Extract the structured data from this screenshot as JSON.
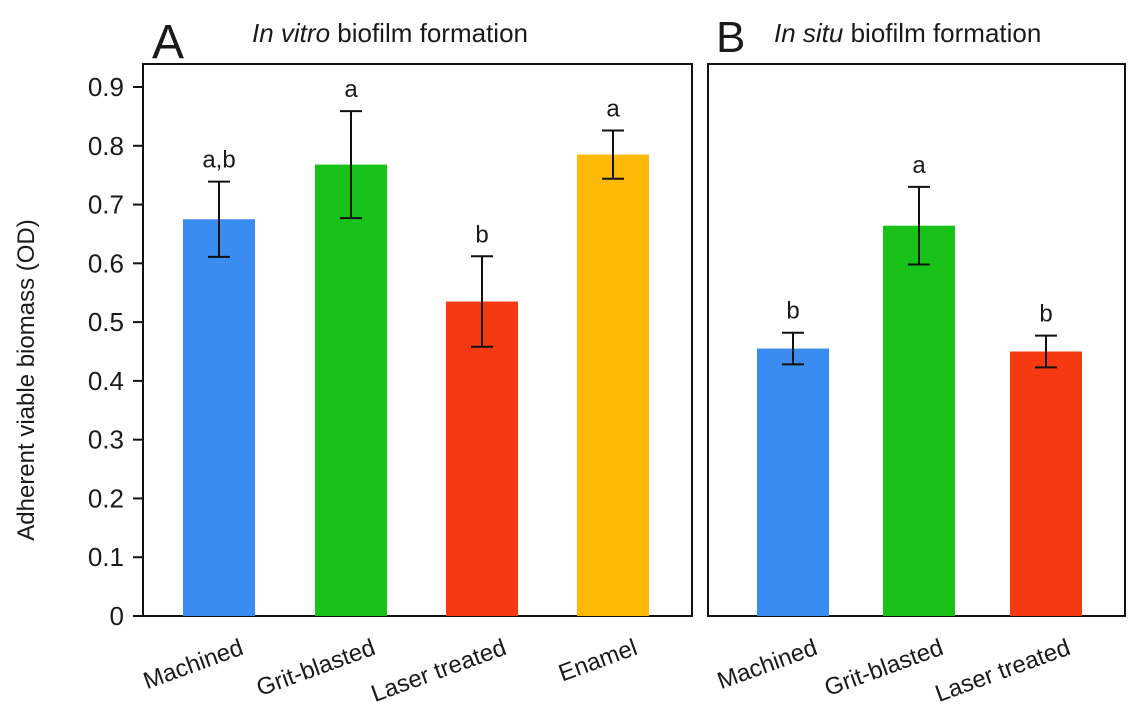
{
  "figure": {
    "ylabel": "Adherent viable biomass (OD)"
  },
  "colors": {
    "Machined": "#3b8cf0",
    "Grit-blasted": "#19c219",
    "Laser treated": "#f53a12",
    "Enamel": "#fcb907"
  },
  "chart_data": [
    {
      "type": "bar",
      "panel_letter": "A",
      "title_italic": "In vitro",
      "title_rest": " biofilm formation",
      "ylim": [
        0,
        0.9
      ],
      "yticks": [
        "0",
        "0.1",
        "0.2",
        "0.3",
        "0.4",
        "0.5",
        "0.6",
        "0.7",
        "0.8",
        "0.9"
      ],
      "categories": [
        "Machined",
        "Grit-blasted",
        "Laser treated",
        "Enamel"
      ],
      "values": [
        0.675,
        0.768,
        0.535,
        0.785
      ],
      "error": [
        0.064,
        0.091,
        0.077,
        0.041
      ],
      "letters": [
        "a,b",
        "a",
        "b",
        "a"
      ]
    },
    {
      "type": "bar",
      "panel_letter": "B",
      "title_italic": "In situ",
      "title_rest": " biofilm formation",
      "ylim": [
        0,
        0.9
      ],
      "categories": [
        "Machined",
        "Grit-blasted",
        "Laser treated"
      ],
      "values": [
        0.455,
        0.664,
        0.45
      ],
      "error": [
        0.027,
        0.066,
        0.027
      ],
      "letters": [
        "b",
        "a",
        "b"
      ]
    }
  ]
}
